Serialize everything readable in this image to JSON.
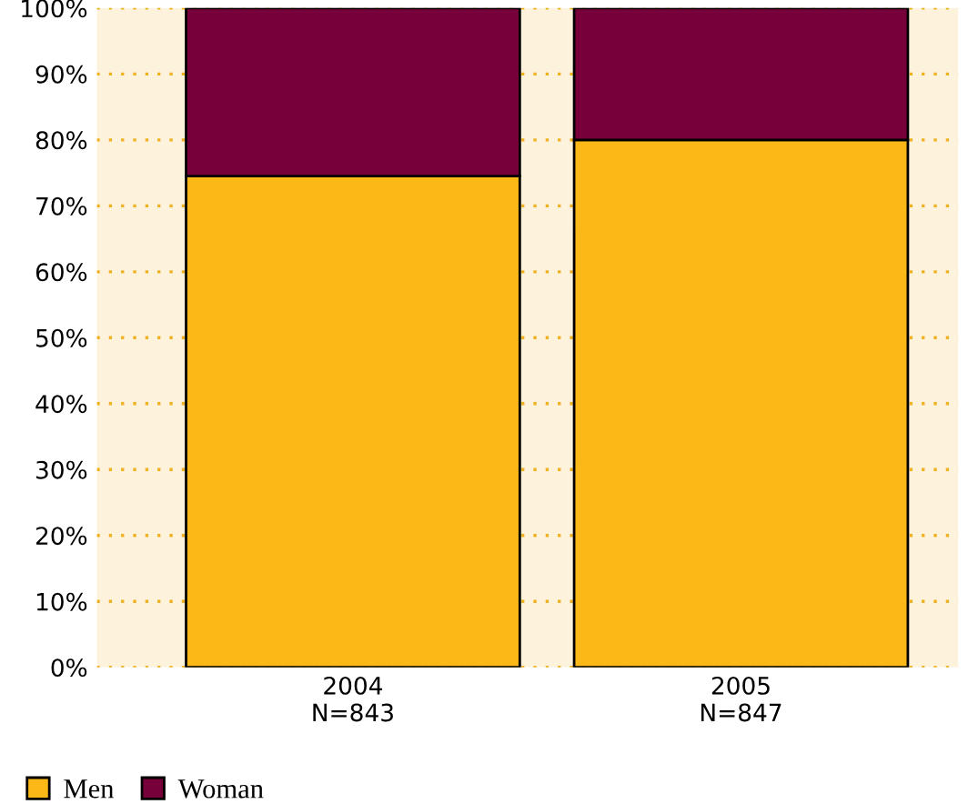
{
  "chart_data": {
    "type": "bar",
    "stacked": true,
    "categories": [
      "2004\nN=843",
      "2005\nN=847"
    ],
    "series": [
      {
        "name": "Men",
        "color": "#fbb817",
        "values": [
          74.5,
          80
        ]
      },
      {
        "name": "Woman",
        "color": "#78003a",
        "values": [
          25.5,
          20
        ]
      }
    ],
    "ylim": [
      0,
      100
    ],
    "yticks": [
      {
        "value": 0,
        "label": "0%"
      },
      {
        "value": 10,
        "label": "10%"
      },
      {
        "value": 20,
        "label": "20%"
      },
      {
        "value": 30,
        "label": "30%"
      },
      {
        "value": 40,
        "label": "40%"
      },
      {
        "value": 50,
        "label": "50%"
      },
      {
        "value": 60,
        "label": "60%"
      },
      {
        "value": 70,
        "label": "70%"
      },
      {
        "value": 80,
        "label": "80%"
      },
      {
        "value": 90,
        "label": "90%"
      },
      {
        "value": 100,
        "label": "100%"
      }
    ],
    "bands": [
      {
        "axis": "y",
        "from": 0,
        "to": 100,
        "color": "#fdf3dc"
      }
    ],
    "grid": "y",
    "legend": "bottom left"
  }
}
